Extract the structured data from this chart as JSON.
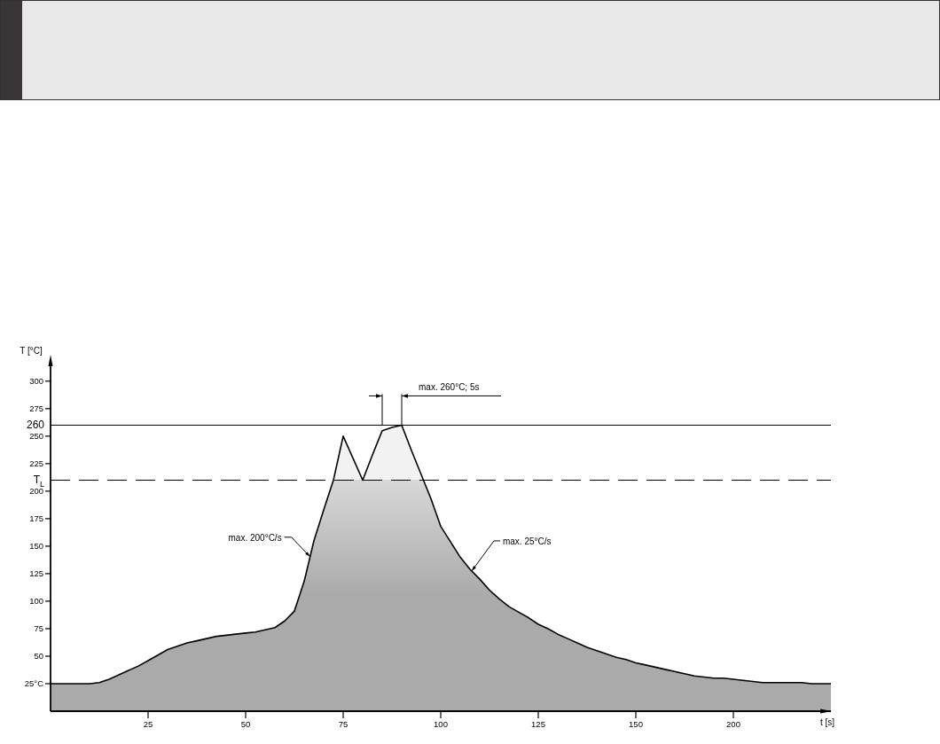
{
  "chart_data": {
    "type": "area",
    "xlabel": "t [s]",
    "ylabel": "T [°C]",
    "categories": [
      null,
      null,
      null,
      null,
      null,
      null,
      null,
      null,
      null,
      null,
      "25",
      null,
      null,
      null,
      null,
      null,
      null,
      null,
      null,
      null,
      "50",
      null,
      null,
      null,
      null,
      null,
      null,
      null,
      null,
      null,
      "75",
      null,
      null,
      null,
      null,
      null,
      null,
      null,
      null,
      null,
      "100",
      null,
      null,
      null,
      null,
      null,
      null,
      null,
      null,
      null,
      "125",
      null,
      null,
      null,
      null,
      null,
      null,
      null,
      null,
      null,
      "150",
      null,
      null,
      null,
      null,
      null,
      null,
      null,
      null,
      null,
      "200",
      null,
      null,
      null,
      null,
      null,
      null,
      null,
      null,
      null,
      null
    ],
    "series": [
      {
        "color": "#aaaaaa",
        "values": [
          25,
          25,
          25,
          25,
          25,
          26,
          29,
          33,
          37,
          41,
          46,
          51,
          56,
          59,
          62,
          64,
          66,
          68,
          69,
          70,
          71,
          72,
          74,
          76,
          82,
          91,
          118,
          155,
          183,
          210,
          250,
          230,
          210,
          233,
          255,
          258,
          260,
          237,
          215,
          193,
          168,
          154,
          140,
          129,
          120,
          110,
          102,
          95,
          90,
          85,
          79,
          75,
          70,
          66,
          62,
          58,
          55,
          52,
          49,
          47,
          44,
          42,
          40,
          38,
          36,
          34,
          32,
          31,
          30,
          30,
          29,
          28,
          27,
          26,
          26,
          26,
          26,
          26,
          25,
          25,
          25
        ]
      }
    ],
    "ylim": [
      0,
      320
    ],
    "yticks": [
      {
        "value": 25,
        "label": "25°C"
      },
      50,
      75,
      100,
      125,
      150,
      175,
      200,
      225,
      250,
      275,
      300
    ],
    "ref_lines": [
      {
        "axis": "y",
        "value": 260,
        "label": "260",
        "line_style": "solid"
      },
      {
        "axis": "y",
        "value": 210,
        "label": "T$_{L}$",
        "line_style": "dashed"
      }
    ],
    "annotations": [
      "max. 260°C; 5s",
      "max. 200°C/s",
      "max. 25°C/s"
    ]
  }
}
